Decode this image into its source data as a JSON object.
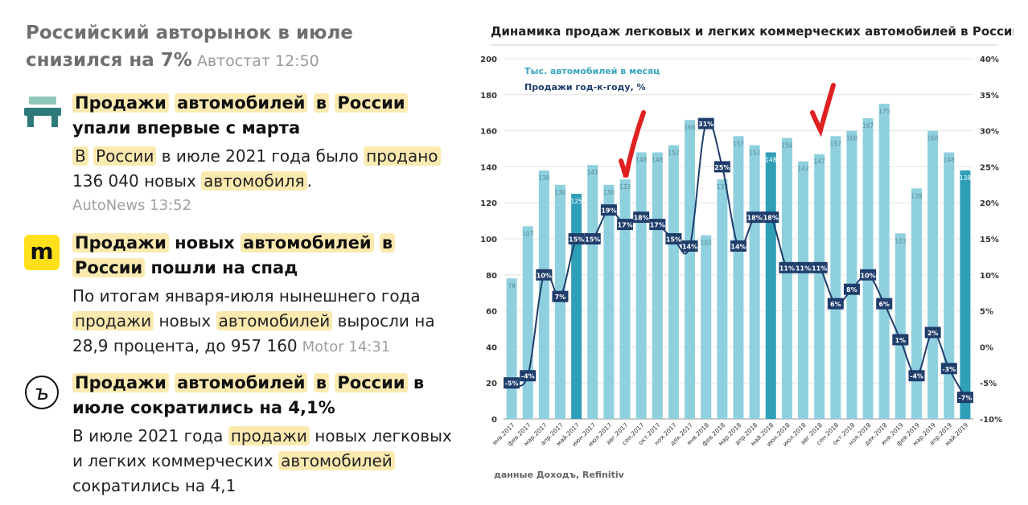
{
  "feed": {
    "headline": "Российский авторынок в июле снизился на 7%",
    "headline_source": "Автостат 12:50",
    "items": [
      {
        "title": [
          {
            "text": "Продажи",
            "highlight": true
          },
          " ",
          {
            "text": "автомобилей",
            "highlight": true
          },
          " ",
          {
            "text": "в",
            "highlight": true
          },
          " ",
          {
            "text": "России",
            "highlight": true
          },
          " упали впервые с марта"
        ],
        "body": [
          {
            "text": "В",
            "highlight": true
          },
          " ",
          {
            "text": "России",
            "highlight": true
          },
          " в июле 2021 года было ",
          {
            "text": "продано",
            "highlight": true
          },
          " 136 040 новых ",
          {
            "text": "автомобиля",
            "highlight": true
          },
          "."
        ],
        "source": "AutoNews 13:52"
      },
      {
        "title": [
          {
            "text": "Продажи",
            "highlight": true
          },
          " новых ",
          {
            "text": "автомобилей",
            "highlight": true
          },
          " ",
          {
            "text": "в",
            "highlight": true
          },
          " ",
          {
            "text": "России",
            "highlight": true
          },
          " пошли на спад"
        ],
        "body": [
          "По итогам января-июля нынешнего года ",
          {
            "text": "продажи",
            "highlight": true
          },
          " новых ",
          {
            "text": "автомобилей",
            "highlight": true
          },
          " выросли на 28,9 процента, до 957 160"
        ],
        "source_inline": "Motor 14:31"
      },
      {
        "title": [
          {
            "text": "Продажи",
            "highlight": true
          },
          " ",
          {
            "text": "автомобилей",
            "highlight": true
          },
          " ",
          {
            "text": "в",
            "highlight": true
          },
          " ",
          {
            "text": "России",
            "highlight": true
          },
          " в июле сократились на 4,1%"
        ],
        "body": [
          "В июле 2021 года ",
          {
            "text": "продажи",
            "highlight": true
          },
          " новых легковых и легких коммерческих ",
          {
            "text": "автомобилей",
            "highlight": true
          },
          " сократились на 4,1"
        ]
      }
    ]
  },
  "chart_data": {
    "type": "bar-line",
    "title": "Динамика продаж легковых и легких коммерческих автомобилей в России",
    "source": "данные Доходъ, Refinitiv",
    "categories": [
      "янв.2017",
      "фев.2017",
      "мар.2017",
      "апр.2017",
      "май.2017",
      "июн.2017",
      "июл.2017",
      "авг.2017",
      "сен.2017",
      "окт.2017",
      "ноя.2017",
      "дек.2017",
      "янв.2018",
      "фев.2018",
      "мар.2018",
      "апр.2018",
      "май.2018",
      "июн.2018",
      "июл.2018",
      "авг.2018",
      "сен.2018",
      "окт.2018",
      "ноя.2018",
      "дек.2018",
      "янв.2019",
      "фев.2019",
      "мар.2019",
      "апр.2019",
      "май.2019"
    ],
    "series": [
      {
        "name": "Тыс. автомобилей в месяц",
        "type": "bar",
        "color": "#2f9fb8",
        "colors": [
          "#8fd0de",
          "#8fd0de",
          "#8fd0de",
          "#8fd0de",
          "#2f9fb8",
          "#8fd0de",
          "#8fd0de",
          "#8fd0de",
          "#8fd0de",
          "#8fd0de",
          "#8fd0de",
          "#8fd0de",
          "#8fd0de",
          "#8fd0de",
          "#8fd0de",
          "#8fd0de",
          "#2f9fb8",
          "#8fd0de",
          "#8fd0de",
          "#8fd0de",
          "#8fd0de",
          "#8fd0de",
          "#8fd0de",
          "#8fd0de",
          "#8fd0de",
          "#8fd0de",
          "#8fd0de",
          "#8fd0de",
          "#2f9fb8"
        ],
        "values": [
          78,
          107,
          138,
          130,
          125,
          141,
          130,
          133,
          148,
          148,
          152,
          166,
          102,
          133,
          157,
          152,
          148,
          156,
          143,
          147,
          157,
          160,
          167,
          175,
          103,
          128,
          160,
          148,
          138
        ]
      },
      {
        "name": "Продажи год-к-году, %",
        "type": "line",
        "axis": "y2",
        "color": "#1f3d6b",
        "values": [
          -5,
          -4,
          10,
          7,
          15,
          15,
          19,
          17,
          18,
          17,
          15,
          14,
          31,
          25,
          14,
          18,
          18,
          11,
          11,
          11,
          6,
          8,
          10,
          6,
          1,
          -4,
          2,
          -3,
          -7
        ],
        "value_labels": [
          "-5%",
          "-4%",
          "10%",
          "7%",
          "15%",
          "15%",
          "19%",
          "17%",
          "18%",
          "17%",
          "15%",
          "14%",
          "31%",
          "25%",
          "14%",
          "18%",
          "18%",
          "11%",
          "11%",
          "11%",
          "6%",
          "8%",
          "10%",
          "6%",
          "1%",
          "-4%",
          "2%",
          "-3%",
          "-7%"
        ]
      }
    ],
    "ylim": [
      0,
      200
    ],
    "yticks": [
      0,
      20,
      40,
      60,
      80,
      100,
      120,
      140,
      160,
      180,
      200
    ],
    "y2lim": [
      -10,
      40
    ],
    "y2ticks": [
      {
        "value": -10,
        "label": "-10%"
      },
      {
        "value": -5,
        "label": "-5%"
      },
      {
        "value": 0,
        "label": "0%"
      },
      {
        "value": 5,
        "label": "5%"
      },
      {
        "value": 10,
        "label": "10%"
      },
      {
        "value": 15,
        "label": "15%"
      },
      {
        "value": 20,
        "label": "20%"
      },
      {
        "value": 25,
        "label": "25%"
      },
      {
        "value": 30,
        "label": "30%"
      },
      {
        "value": 35,
        "label": "35%"
      },
      {
        "value": 40,
        "label": "40%"
      }
    ],
    "grid": true
  }
}
